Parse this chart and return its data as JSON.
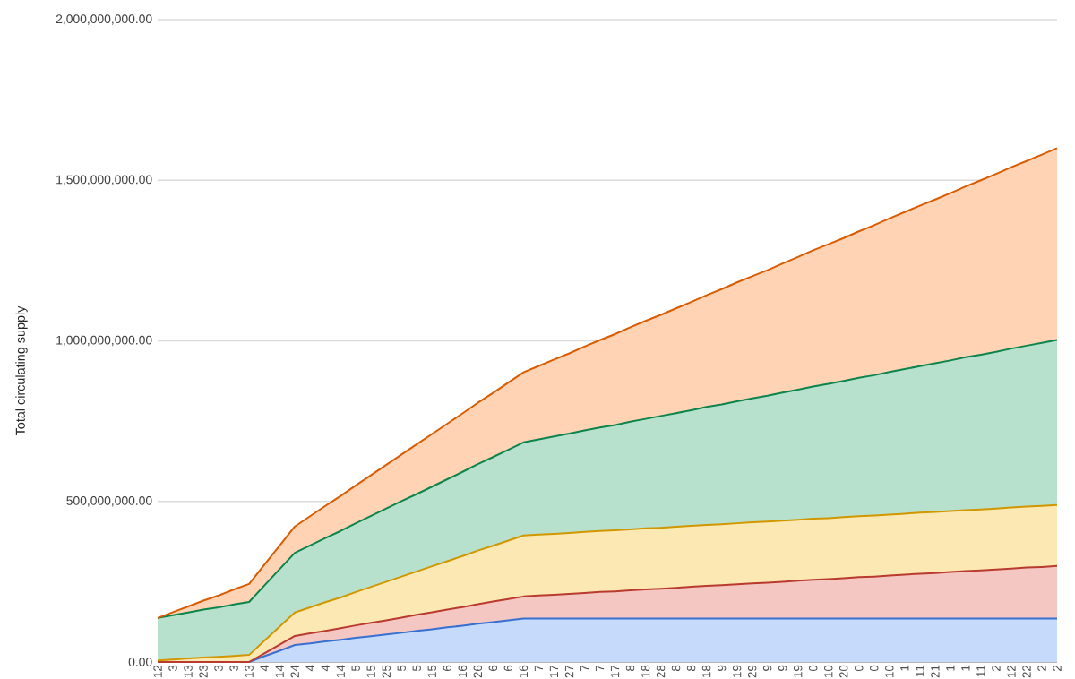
{
  "chart_data": {
    "type": "area",
    "stacked": true,
    "ylabel": "Total circulating supply",
    "categories": [
      "12",
      "3",
      "13",
      "23",
      "3",
      "3",
      "13",
      "4",
      "14",
      "24",
      "4",
      "4",
      "14",
      "5",
      "15",
      "25",
      "5",
      "5",
      "15",
      "6",
      "16",
      "26",
      "6",
      "6",
      "16",
      "7",
      "17",
      "27",
      "7",
      "7",
      "17",
      "8",
      "18",
      "28",
      "8",
      "8",
      "18",
      "9",
      "19",
      "29",
      "9",
      "9",
      "19",
      "0",
      "10",
      "20",
      "0",
      "0",
      "10",
      "1",
      "11",
      "21",
      "1",
      "1",
      "11",
      "2",
      "12",
      "22",
      "2",
      "2"
    ],
    "series": [
      {
        "color": "#c6dafc",
        "values": [
          0,
          0,
          0,
          0,
          0,
          0,
          0,
          18000000,
          35000000,
          53000000,
          58000000,
          64000000,
          69000000,
          75000000,
          80000000,
          86000000,
          91000000,
          97000000,
          102000000,
          108000000,
          113000000,
          119000000,
          124000000,
          130000000,
          135000000,
          135000000,
          135000000,
          135000000,
          135000000,
          135000000,
          135000000,
          135000000,
          135000000,
          135000000,
          135000000,
          135000000,
          135000000,
          135000000,
          135000000,
          135000000,
          135000000,
          135000000,
          135000000,
          135000000,
          135000000,
          135000000,
          135000000,
          135000000,
          135000000,
          135000000,
          135000000,
          135000000,
          135000000,
          135000000,
          135000000,
          135000000,
          135000000,
          135000000,
          135000000,
          135000000
        ]
      },
      {
        "color": "#f4c7c3",
        "values": [
          0,
          0,
          0,
          0,
          0,
          0,
          0,
          9000000,
          19000000,
          28000000,
          31000000,
          33000000,
          36000000,
          39000000,
          42000000,
          44000000,
          47000000,
          50000000,
          53000000,
          55000000,
          58000000,
          61000000,
          64000000,
          66000000,
          69000000,
          72000000,
          74000000,
          77000000,
          80000000,
          83000000,
          85000000,
          88000000,
          91000000,
          93000000,
          96000000,
          99000000,
          102000000,
          104000000,
          107000000,
          110000000,
          112000000,
          115000000,
          118000000,
          121000000,
          123000000,
          126000000,
          129000000,
          131000000,
          134000000,
          137000000,
          140000000,
          142000000,
          145000000,
          148000000,
          150000000,
          153000000,
          156000000,
          159000000,
          161000000,
          164000000
        ]
      },
      {
        "color": "#fce8b2",
        "values": [
          5000000,
          8000000,
          11000000,
          14000000,
          16000000,
          19000000,
          22000000,
          39000000,
          56000000,
          73000000,
          81000000,
          89000000,
          96000000,
          104000000,
          112000000,
          120000000,
          128000000,
          135000000,
          143000000,
          151000000,
          159000000,
          167000000,
          174000000,
          182000000,
          190000000,
          190000000,
          190000000,
          190000000,
          190000000,
          190000000,
          190000000,
          190000000,
          190000000,
          190000000,
          190000000,
          190000000,
          190000000,
          190000000,
          190000000,
          190000000,
          190000000,
          190000000,
          190000000,
          190000000,
          190000000,
          190000000,
          190000000,
          190000000,
          190000000,
          190000000,
          190000000,
          190000000,
          190000000,
          190000000,
          190000000,
          190000000,
          190000000,
          190000000,
          190000000,
          190000000
        ]
      },
      {
        "color": "#b7e1cd",
        "values": [
          132000000,
          138000000,
          143000000,
          149000000,
          154000000,
          160000000,
          165000000,
          172000000,
          179000000,
          186000000,
          193000000,
          200000000,
          207000000,
          214000000,
          221000000,
          228000000,
          235000000,
          241000000,
          248000000,
          255000000,
          262000000,
          269000000,
          276000000,
          283000000,
          290000000,
          296000000,
          303000000,
          309000000,
          316000000,
          322000000,
          328000000,
          335000000,
          341000000,
          348000000,
          354000000,
          360000000,
          367000000,
          373000000,
          380000000,
          386000000,
          392000000,
          399000000,
          405000000,
          412000000,
          418000000,
          424000000,
          431000000,
          437000000,
          444000000,
          450000000,
          456000000,
          463000000,
          469000000,
          476000000,
          482000000,
          488000000,
          495000000,
          501000000,
          508000000,
          514000000
        ]
      },
      {
        "color": "#ffd3b3",
        "values": [
          0,
          9000000,
          19000000,
          28000000,
          37000000,
          47000000,
          56000000,
          65000000,
          73000000,
          82000000,
          91000000,
          100000000,
          109000000,
          118000000,
          127000000,
          136000000,
          145000000,
          155000000,
          164000000,
          173000000,
          182000000,
          191000000,
          200000000,
          209000000,
          218000000,
          229000000,
          240000000,
          250000000,
          261000000,
          272000000,
          283000000,
          294000000,
          305000000,
          315000000,
          326000000,
          337000000,
          348000000,
          359000000,
          370000000,
          380000000,
          391000000,
          402000000,
          413000000,
          424000000,
          435000000,
          445000000,
          456000000,
          467000000,
          478000000,
          489000000,
          500000000,
          510000000,
          521000000,
          532000000,
          543000000,
          554000000,
          565000000,
          575000000,
          586000000,
          597000000
        ]
      }
    ],
    "ylim": [
      0,
      2000000000
    ],
    "yticks": [
      {
        "value": 0,
        "label": "0.00"
      },
      {
        "value": 500000000,
        "label": "500,000,000.00"
      },
      {
        "value": 1000000000,
        "label": "1,000,000,000.00"
      },
      {
        "value": 1500000000,
        "label": "1,500,000,000.00"
      },
      {
        "value": 2000000000,
        "label": "2,000,000,000.00"
      }
    ],
    "grid": "y"
  }
}
